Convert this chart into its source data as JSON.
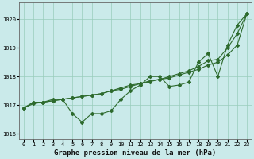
{
  "title": "Graphe pression niveau de la mer (hPa)",
  "background_color": "#caeaea",
  "line_color": "#2d6a2d",
  "grid_color": "#99ccbb",
  "ylim": [
    1015.8,
    1020.6
  ],
  "xlim": [
    -0.5,
    23.5
  ],
  "yticks": [
    1016,
    1017,
    1018,
    1019,
    1020
  ],
  "xticks": [
    0,
    1,
    2,
    3,
    4,
    5,
    6,
    7,
    8,
    9,
    10,
    11,
    12,
    13,
    14,
    15,
    16,
    17,
    18,
    19,
    20,
    21,
    22,
    23
  ],
  "series1": [
    1016.9,
    1017.1,
    1017.1,
    1017.2,
    1017.2,
    1016.7,
    1016.4,
    1016.7,
    1016.7,
    1016.8,
    1017.2,
    1017.5,
    1017.7,
    1018.0,
    1018.0,
    1017.65,
    1017.7,
    1017.8,
    1018.5,
    1018.8,
    1018.0,
    1019.1,
    1019.8,
    1020.2
  ],
  "series2": [
    1016.9,
    1017.1,
    1017.1,
    1017.15,
    1017.2,
    1017.25,
    1017.3,
    1017.35,
    1017.4,
    1017.5,
    1017.6,
    1017.7,
    1017.75,
    1017.85,
    1017.9,
    1018.0,
    1018.1,
    1018.2,
    1018.35,
    1018.55,
    1018.6,
    1019.0,
    1019.5,
    1020.2
  ],
  "series3": [
    1016.9,
    1017.05,
    1017.1,
    1017.15,
    1017.2,
    1017.25,
    1017.3,
    1017.35,
    1017.4,
    1017.5,
    1017.55,
    1017.65,
    1017.75,
    1017.82,
    1017.9,
    1017.95,
    1018.05,
    1018.15,
    1018.25,
    1018.4,
    1018.5,
    1018.75,
    1019.1,
    1020.2
  ],
  "marker_size": 2.0,
  "linewidth": 0.8,
  "title_fontsize": 6.5,
  "tick_fontsize": 5.0
}
